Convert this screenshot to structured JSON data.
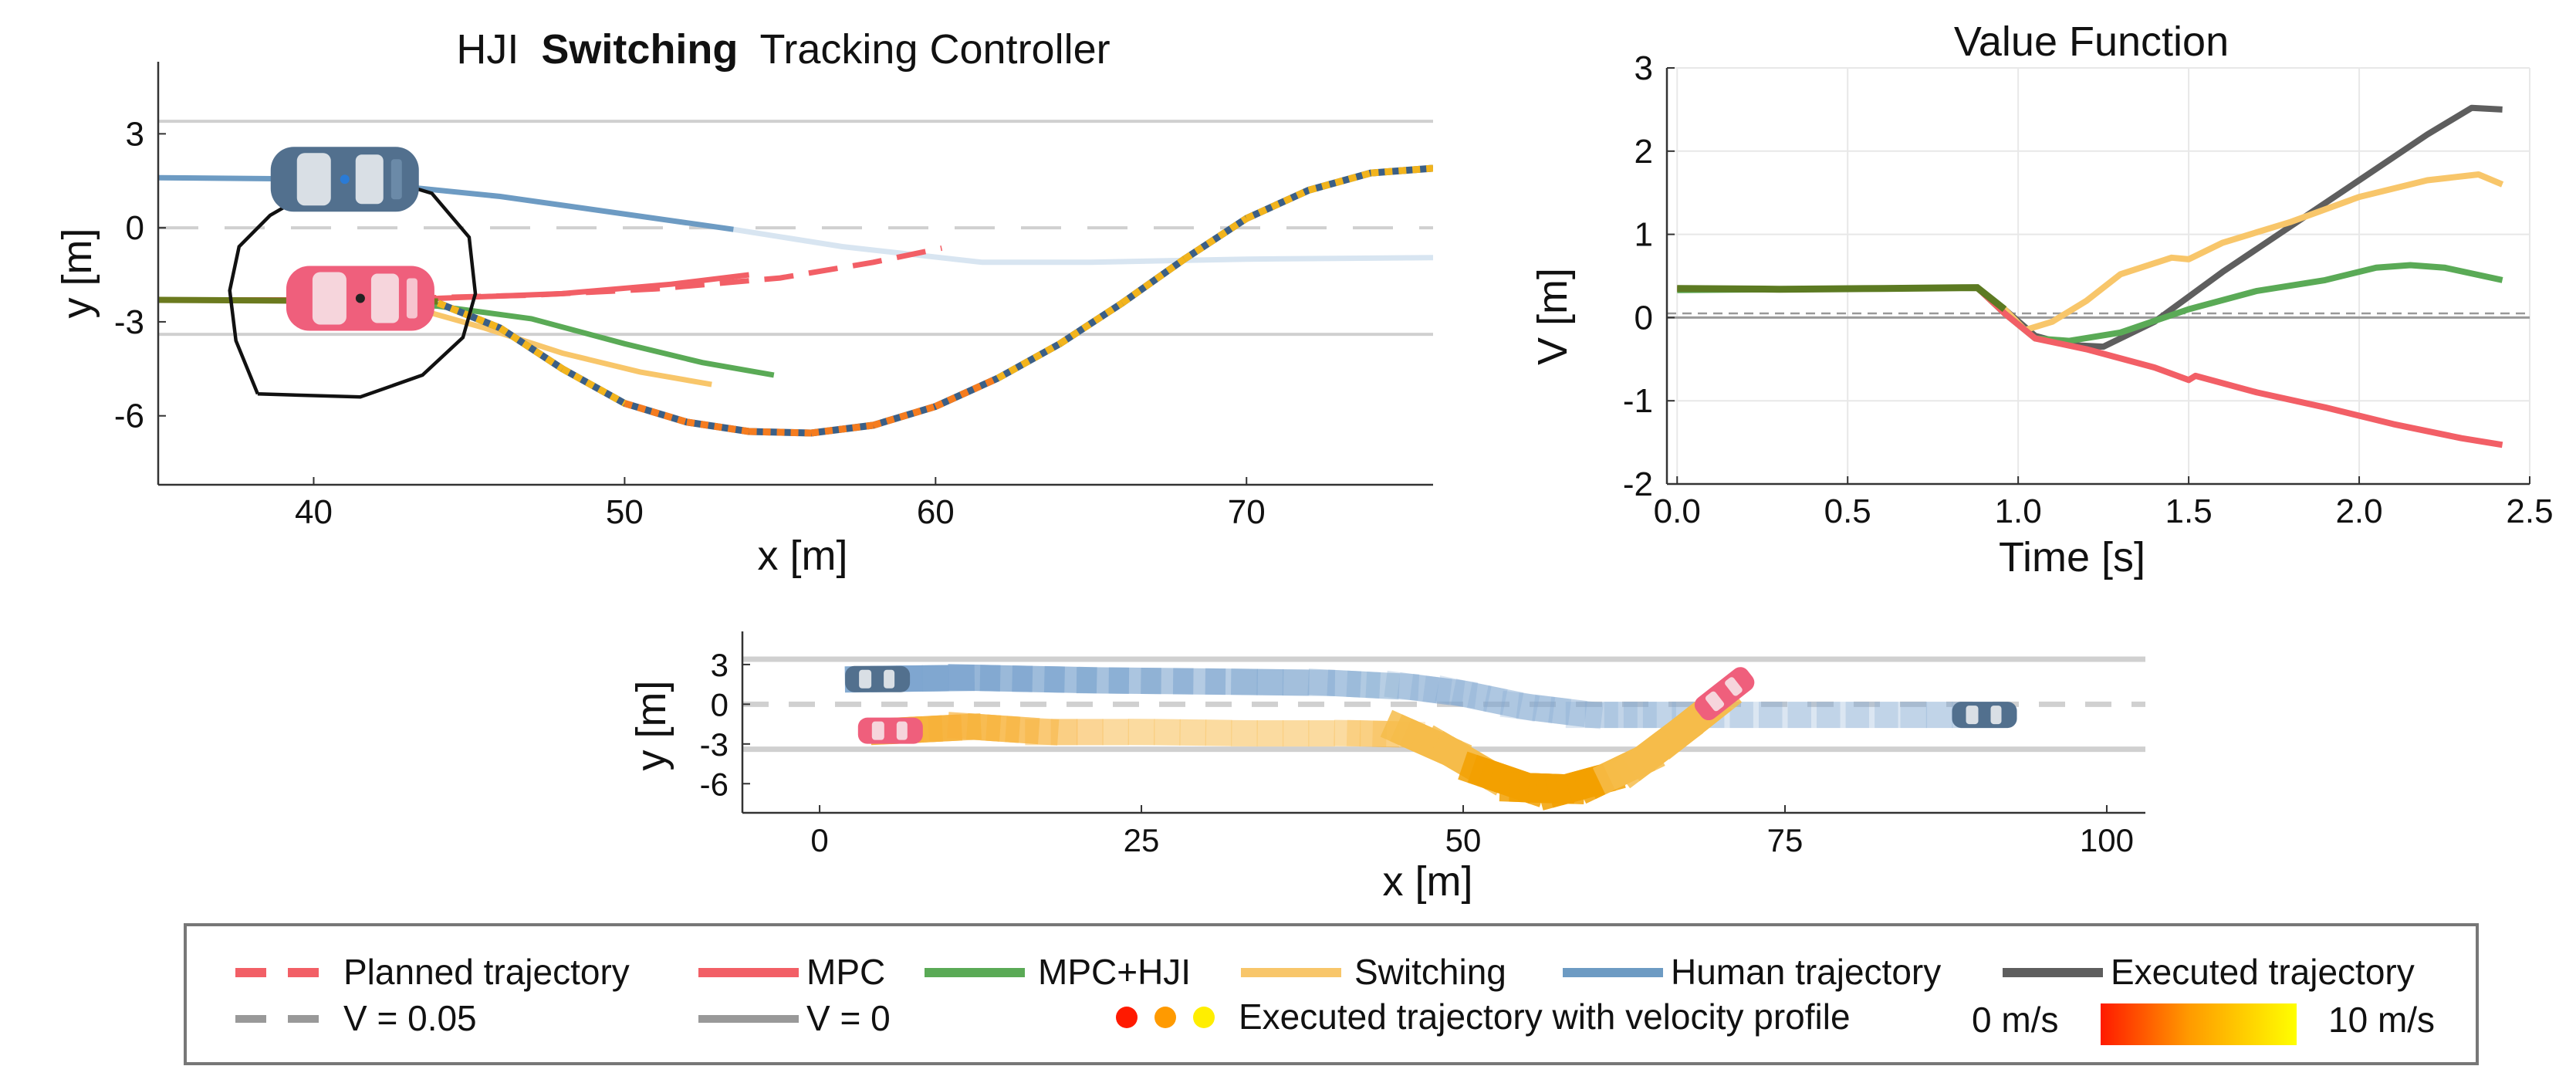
{
  "colors": {
    "human": "#6d9bc3",
    "human_light": "#d8e5f1",
    "mpc": "#f25f66",
    "mpc_hji": "#5aaa56",
    "switching": "#f8c66a",
    "executed": "#5e5e5e",
    "v_line": "#999999",
    "grid": "#e8e8e8",
    "lane": "#d0d0d0",
    "orange": "#f57c1f",
    "gold": "#f2b41d",
    "navy": "#3b5f86"
  },
  "chart_data": [
    {
      "id": "tracking",
      "type": "line",
      "title_prefix": "HJI",
      "title_bold": "Switching",
      "title_suffix": "Tracking Controller",
      "xlabel": "x [m]",
      "ylabel": "y [m]",
      "xlim": [
        35,
        76
      ],
      "ylim": [
        -8.2,
        5.3
      ],
      "xticks": [
        40,
        50,
        60,
        70
      ],
      "xtick_labels": [
        "40",
        "50",
        "60",
        "70"
      ],
      "yticks": [
        3,
        0,
        -3,
        -6
      ],
      "ytick_labels": [
        "3",
        "0",
        "-3",
        "-6"
      ],
      "lane_lines": [
        3.4,
        -3.4
      ],
      "center_dash": 0,
      "human_trajectory": [
        [
          35,
          1.6
        ],
        [
          40.5,
          1.55
        ],
        [
          46,
          1.0
        ],
        [
          53.5,
          -0.05
        ]
      ],
      "human_trajectory_future": [
        [
          53.5,
          -0.05
        ],
        [
          57,
          -0.6
        ],
        [
          61.5,
          -1.1
        ],
        [
          65,
          -1.1
        ],
        [
          70,
          -1.0
        ],
        [
          76,
          -0.95
        ]
      ],
      "planned_trajectory": [
        [
          43,
          -2.25
        ],
        [
          47,
          -2.15
        ],
        [
          51,
          -1.95
        ],
        [
          55,
          -1.6
        ],
        [
          58,
          -1.1
        ],
        [
          60.2,
          -0.65
        ]
      ],
      "mpc": [
        [
          35,
          -2.3
        ],
        [
          40,
          -2.3
        ],
        [
          44,
          -2.25
        ],
        [
          48,
          -2.1
        ],
        [
          51.5,
          -1.8
        ],
        [
          54,
          -1.5
        ]
      ],
      "mpc_hji": [
        [
          35,
          -2.3
        ],
        [
          40,
          -2.3
        ],
        [
          44,
          -2.5
        ],
        [
          47,
          -2.9
        ],
        [
          50,
          -3.7
        ],
        [
          52.5,
          -4.3
        ],
        [
          54.8,
          -4.7
        ]
      ],
      "switching": [
        [
          35,
          -2.3
        ],
        [
          40,
          -2.3
        ],
        [
          43,
          -2.5
        ],
        [
          45.5,
          -3.2
        ],
        [
          48,
          -4.0
        ],
        [
          50.5,
          -4.6
        ],
        [
          52.8,
          -5.0
        ]
      ],
      "executed_profile": [
        [
          44,
          -2.4
        ],
        [
          46,
          -3.2
        ],
        [
          48,
          -4.5
        ],
        [
          50,
          -5.6
        ],
        [
          52,
          -6.2
        ],
        [
          54,
          -6.5
        ],
        [
          56,
          -6.55
        ],
        [
          58,
          -6.3
        ],
        [
          60,
          -5.7
        ],
        [
          62,
          -4.8
        ],
        [
          64,
          -3.7
        ],
        [
          66,
          -2.4
        ],
        [
          68,
          -1.0
        ],
        [
          70,
          0.3
        ],
        [
          72,
          1.2
        ],
        [
          74,
          1.75
        ],
        [
          76,
          1.9
        ]
      ],
      "reachable_set": [
        [
          38.2,
          -5.3
        ],
        [
          41.5,
          -5.4
        ],
        [
          43.5,
          -4.7
        ],
        [
          44.8,
          -3.5
        ],
        [
          45.2,
          -2.1
        ],
        [
          45.0,
          -0.3
        ],
        [
          43.8,
          1.1
        ],
        [
          41.8,
          1.7
        ],
        [
          40.0,
          1.2
        ],
        [
          38.6,
          0.4
        ],
        [
          37.6,
          -0.6
        ],
        [
          37.3,
          -2.0
        ],
        [
          37.5,
          -3.6
        ],
        [
          38.2,
          -5.3
        ]
      ],
      "human_car": [
        41.0,
        1.55
      ],
      "ego_car": [
        41.5,
        -2.25
      ]
    },
    {
      "id": "value",
      "type": "line",
      "title": "Value Function",
      "xlabel": "Time [s]",
      "ylabel": "V [m]",
      "xlim": [
        -0.03,
        2.5
      ],
      "ylim": [
        -2,
        3
      ],
      "xticks": [
        0,
        0.5,
        1,
        1.5,
        2,
        2.5
      ],
      "xtick_labels": [
        "0.0",
        "0.5",
        "1.0",
        "1.5",
        "2.0",
        "2.5"
      ],
      "yticks": [
        3,
        2,
        1,
        0,
        -1,
        -2
      ],
      "ytick_labels": [
        "3",
        "2",
        "1",
        "0",
        "-1",
        "-2"
      ],
      "v_threshold": 0.05,
      "v_zero": 0,
      "series": [
        {
          "name": "Executed trajectory",
          "color": "executed",
          "x": [
            0,
            0.3,
            0.6,
            0.88,
            0.96,
            1.05,
            1.15,
            1.25,
            1.4,
            1.6,
            1.8,
            2.0,
            2.2,
            2.33,
            2.42
          ],
          "y": [
            0.35,
            0.34,
            0.35,
            0.36,
            0.1,
            -0.22,
            -0.33,
            -0.35,
            -0.05,
            0.55,
            1.1,
            1.65,
            2.2,
            2.52,
            2.5
          ]
        },
        {
          "name": "Switching",
          "color": "switching",
          "x": [
            0,
            0.3,
            0.6,
            0.88,
            0.96,
            1.02,
            1.1,
            1.2,
            1.3,
            1.45,
            1.5,
            1.6,
            1.8,
            2.0,
            2.2,
            2.35,
            2.42
          ],
          "y": [
            0.34,
            0.34,
            0.35,
            0.36,
            0.1,
            -0.15,
            -0.05,
            0.2,
            0.52,
            0.72,
            0.7,
            0.9,
            1.15,
            1.45,
            1.65,
            1.72,
            1.6
          ]
        },
        {
          "name": "MPC+HJI",
          "color": "mpc_hji",
          "x": [
            0,
            0.3,
            0.6,
            0.88,
            0.96,
            1.05,
            1.15,
            1.3,
            1.5,
            1.7,
            1.9,
            2.05,
            2.15,
            2.25,
            2.42
          ],
          "y": [
            0.33,
            0.34,
            0.35,
            0.36,
            0.05,
            -0.25,
            -0.28,
            -0.18,
            0.1,
            0.32,
            0.45,
            0.6,
            0.63,
            0.6,
            0.45
          ]
        },
        {
          "name": "MPC",
          "color": "mpc",
          "x": [
            0,
            0.3,
            0.6,
            0.88,
            0.96,
            1.05,
            1.2,
            1.4,
            1.5,
            1.52,
            1.7,
            1.9,
            2.1,
            2.3,
            2.42
          ],
          "y": [
            0.35,
            0.34,
            0.35,
            0.36,
            0.05,
            -0.25,
            -0.38,
            -0.6,
            -0.75,
            -0.7,
            -0.9,
            -1.08,
            -1.28,
            -1.45,
            -1.53
          ]
        }
      ]
    },
    {
      "id": "overview",
      "type": "line",
      "xlabel": "x [m]",
      "ylabel": "y [m]",
      "xlim": [
        -6,
        103
      ],
      "ylim": [
        -8.2,
        5.5
      ],
      "xticks": [
        0,
        25,
        50,
        75,
        100
      ],
      "xtick_labels": [
        "0",
        "25",
        "50",
        "75",
        "100"
      ],
      "yticks": [
        3,
        0,
        -3,
        -6
      ],
      "ytick_labels": [
        "3",
        "0",
        "-3",
        "-6"
      ],
      "lane_lines": [
        3.4,
        -3.4
      ],
      "human_path": [
        [
          4,
          1.9
        ],
        [
          12,
          2.0
        ],
        [
          22,
          1.8
        ],
        [
          32,
          1.7
        ],
        [
          40,
          1.6
        ],
        [
          46,
          1.3
        ],
        [
          50,
          0.8
        ],
        [
          55,
          -0.2
        ],
        [
          60,
          -0.8
        ],
        [
          66,
          -0.8
        ],
        [
          75,
          -0.8
        ],
        [
          84,
          -0.8
        ],
        [
          92,
          -0.8
        ]
      ],
      "ego_path": [
        [
          6,
          -2.0
        ],
        [
          12,
          -1.7
        ],
        [
          18,
          -2.1
        ],
        [
          26,
          -2.1
        ],
        [
          34,
          -2.2
        ],
        [
          42,
          -2.2
        ],
        [
          46,
          -2.3
        ],
        [
          49,
          -3.6
        ],
        [
          52,
          -5.3
        ],
        [
          55,
          -6.3
        ],
        [
          58,
          -6.4
        ],
        [
          61,
          -5.6
        ],
        [
          64,
          -4.2
        ],
        [
          67,
          -2.0
        ],
        [
          70,
          0.3
        ]
      ],
      "human_start": [
        4.5,
        1.9
      ],
      "human_end": [
        90.5,
        -0.8
      ],
      "ego_start": [
        5.5,
        -2.0
      ],
      "ego_end": [
        70.3,
        0.8
      ]
    }
  ],
  "legend": {
    "items": [
      {
        "label": "Planned trajectory",
        "style": "dashed-red"
      },
      {
        "label": "MPC",
        "style": "solid-red"
      },
      {
        "label": "MPC+HJI",
        "style": "solid-green"
      },
      {
        "label": "Switching",
        "style": "solid-yellow"
      },
      {
        "label": "Human trajectory",
        "style": "solid-blue"
      },
      {
        "label": "Executed trajectory",
        "style": "solid-gray"
      },
      {
        "label": "V = 0.05",
        "style": "dashed-gray"
      },
      {
        "label": "V = 0",
        "style": "solid-lightgray"
      },
      {
        "label": "Executed trajectory with velocity profile",
        "style": "dots"
      }
    ],
    "colorbar_min_label": "0 m/s",
    "colorbar_max_label": "10 m/s",
    "velocity_min": 0,
    "velocity_max": 10
  }
}
